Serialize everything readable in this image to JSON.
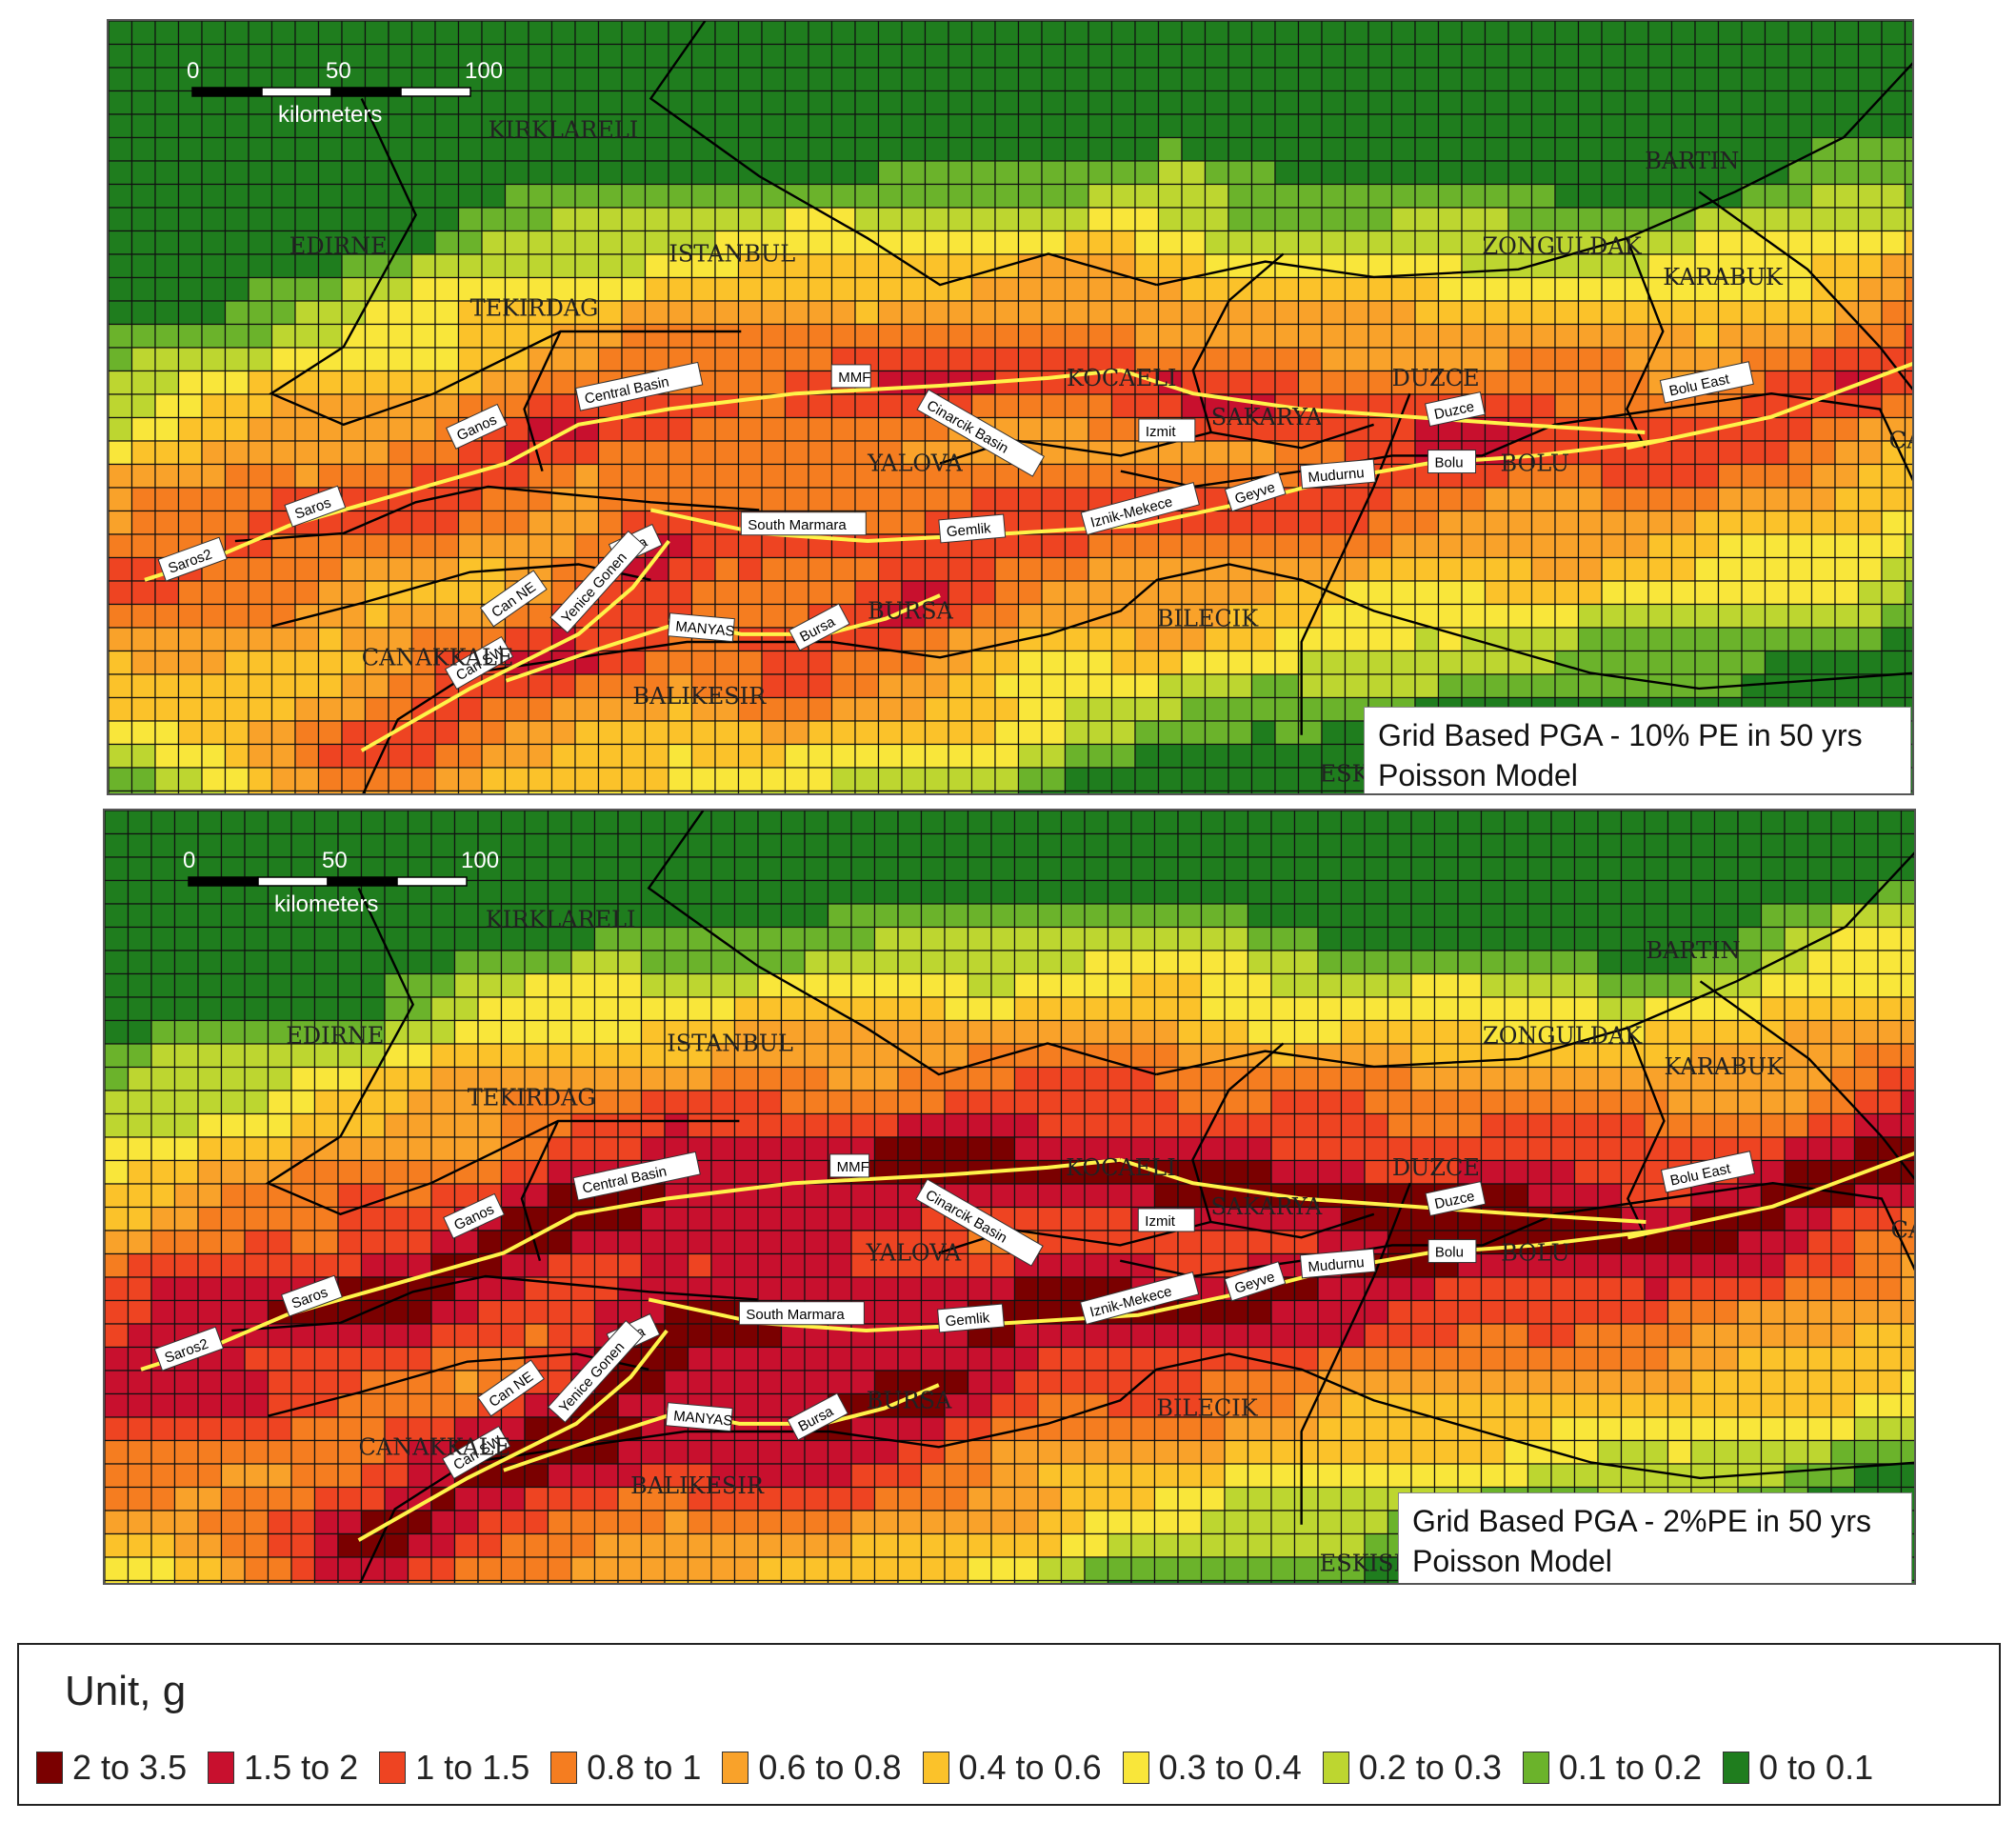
{
  "maps": [
    {
      "title": "Grid Based PGA - 10% PE in 50 yrs",
      "model": "Poisson Model",
      "mode": "10",
      "scalebar": {
        "ticks": [
          "0",
          "50",
          "100"
        ],
        "unit": "kilometers"
      }
    },
    {
      "title": "Grid Based PGA - 2%PE in 50 yrs",
      "model": "Poisson Model",
      "mode": "2",
      "scalebar": {
        "ticks": [
          "0",
          "50",
          "100"
        ],
        "unit": "kilometers"
      }
    }
  ],
  "provinces": [
    "KIRKLARELI",
    "EDIRNE",
    "ISTANBUL",
    "TEKIRDAG",
    "ZONGULDAK",
    "BARTIN",
    "KARABUK",
    "KOCAELI",
    "DUZCE",
    "SAKARYA",
    "YALOVA",
    "BOLU",
    "CANAKKALE",
    "BALIKESIR",
    "BURSA",
    "BILECIK",
    "ESK",
    "ESKISI",
    "CA"
  ],
  "faults": [
    "Saros2",
    "Saros",
    "Ganos",
    "Central Basin",
    "MMF",
    "Cinarcik Basin",
    "Izmit",
    "Duzce",
    "Bolu East",
    "Bolu",
    "Mudurnu",
    "Geyve",
    "Iznik-Mekece",
    "Gemlik",
    "South Marmara",
    "Biga",
    "Can NE",
    "Can SW",
    "Yenice Gonen",
    "MANYAS",
    "Bursa"
  ],
  "legend": {
    "title": "Unit, g",
    "items": [
      {
        "label": "2 to 3.5",
        "color": "#7a0000"
      },
      {
        "label": "1.5 to 2",
        "color": "#c8102e"
      },
      {
        "label": "1 to 1.5",
        "color": "#ee4422"
      },
      {
        "label": "0.8 to 1",
        "color": "#f57d20"
      },
      {
        "label": "0.6 to 0.8",
        "color": "#f9a22a"
      },
      {
        "label": "0.4 to 0.6",
        "color": "#fbc22a"
      },
      {
        "label": "0.3 to 0.4",
        "color": "#f9e63a"
      },
      {
        "label": "0.2 to 0.3",
        "color": "#bdd630"
      },
      {
        "label": "0.1 to 0.2",
        "color": "#6bb32b"
      },
      {
        "label": "0 to 0.1",
        "color": "#1f7d1e"
      }
    ]
  }
}
